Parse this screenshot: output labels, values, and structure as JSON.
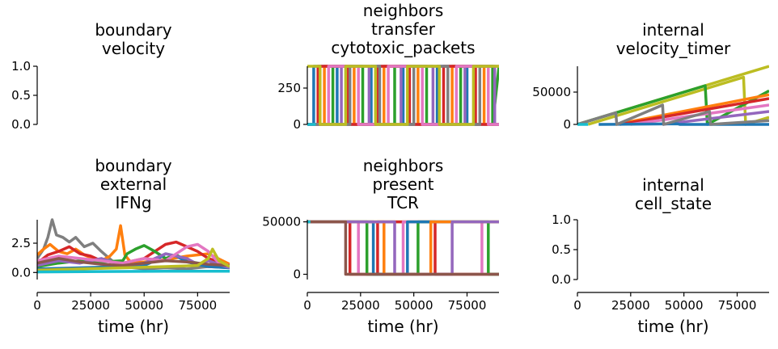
{
  "chart_data": [
    {
      "type": "line",
      "title_lines": [
        "boundary",
        "velocity"
      ],
      "xlabel": "",
      "ylabel": "",
      "xlim": [
        0,
        90000
      ],
      "ylim": [
        0,
        1.0
      ],
      "yticks": [
        0.0,
        0.5,
        1.0
      ],
      "ytick_labels": [
        "0.0",
        "0.5",
        "1.0"
      ],
      "xticks": [],
      "xtick_labels": [],
      "series": []
    },
    {
      "type": "line",
      "title_lines": [
        "neighbors",
        "transfer",
        "cytotoxic_packets"
      ],
      "xlabel": "",
      "ylabel": "",
      "xlim": [
        0,
        90000
      ],
      "ylim": [
        0,
        400
      ],
      "yticks": [
        0,
        250
      ],
      "ytick_labels": [
        "0",
        "250"
      ],
      "xticks": [],
      "xtick_labels": [],
      "series": [
        {
          "color": "#1f77b4",
          "x": [
            0,
            3000,
            3001,
            14000,
            14001,
            30000,
            30001,
            45000,
            45001,
            61000,
            61001,
            75000,
            75001,
            90000
          ],
          "y": [
            0,
            0,
            400,
            400,
            0,
            0,
            400,
            400,
            0,
            0,
            400,
            400,
            0,
            0
          ]
        },
        {
          "color": "#ff7f0e",
          "x": [
            0,
            8000,
            8001,
            22000,
            22001,
            36000,
            36001,
            52000,
            52001,
            68000,
            68001,
            83000,
            83001,
            90000
          ],
          "y": [
            0,
            0,
            400,
            400,
            0,
            0,
            400,
            400,
            0,
            0,
            400,
            400,
            0,
            0
          ]
        },
        {
          "color": "#2ca02c",
          "x": [
            0,
            12000,
            12001,
            26000,
            26001,
            41000,
            41001,
            56000,
            56001,
            72000,
            72001,
            87000,
            87001,
            90000
          ],
          "y": [
            0,
            0,
            400,
            400,
            0,
            0,
            400,
            400,
            0,
            0,
            400,
            400,
            0,
            400
          ]
        },
        {
          "color": "#d62728",
          "x": [
            0,
            5000,
            5001,
            19000,
            19001,
            33000,
            33001,
            48000,
            48001,
            64000,
            64001,
            79000,
            79001,
            90000
          ],
          "y": [
            0,
            0,
            400,
            400,
            0,
            0,
            400,
            400,
            0,
            0,
            400,
            400,
            0,
            0
          ]
        },
        {
          "color": "#9467bd",
          "x": [
            0,
            16000,
            16001,
            29000,
            29001,
            44000,
            44001,
            59000,
            59001,
            74000,
            74001,
            88000,
            88001,
            90000
          ],
          "y": [
            0,
            0,
            400,
            400,
            0,
            0,
            400,
            400,
            0,
            0,
            400,
            400,
            0,
            0
          ]
        },
        {
          "color": "#e377c2",
          "x": [
            0,
            10000,
            10001,
            24000,
            24001,
            38000,
            38001,
            54000,
            54001,
            70000,
            70001,
            85000,
            85001,
            90000
          ],
          "y": [
            0,
            0,
            400,
            400,
            0,
            0,
            400,
            400,
            0,
            0,
            400,
            400,
            0,
            0
          ]
        },
        {
          "color": "#7f7f7f",
          "x": [
            0,
            20000,
            20001,
            34000,
            34001,
            50000,
            50001,
            66000,
            66001,
            81000,
            81001,
            90000
          ],
          "y": [
            0,
            0,
            400,
            400,
            0,
            0,
            400,
            400,
            0,
            0,
            400,
            400
          ]
        },
        {
          "color": "#bcbd22",
          "x": [
            0,
            6000,
            6001,
            18000,
            18001,
            32000,
            32001,
            47000,
            47001,
            62000,
            62001,
            78000,
            78001,
            90000
          ],
          "y": [
            400,
            400,
            0,
            0,
            400,
            400,
            0,
            0,
            400,
            400,
            0,
            0,
            400,
            400
          ]
        },
        {
          "color": "#17becf",
          "x": [
            0,
            4000
          ],
          "y": [
            0,
            0
          ]
        }
      ]
    },
    {
      "type": "line",
      "title_lines": [
        "internal",
        "velocity_timer"
      ],
      "xlabel": "",
      "ylabel": "",
      "xlim": [
        0,
        90000
      ],
      "ylim": [
        0,
        90000
      ],
      "yticks": [
        0,
        50000
      ],
      "ytick_labels": [
        "0",
        "50000"
      ],
      "xticks": [],
      "xtick_labels": [],
      "series": [
        {
          "color": "#bcbd22",
          "x": [
            0,
            90000
          ],
          "y": [
            0,
            90000
          ]
        },
        {
          "color": "#bcbd22",
          "x": [
            5000,
            78000,
            79000,
            90000
          ],
          "y": [
            0,
            73000,
            0,
            11000
          ]
        },
        {
          "color": "#2ca02c",
          "x": [
            0,
            60000,
            61000,
            90000
          ],
          "y": [
            0,
            60000,
            0,
            52000
          ]
        },
        {
          "color": "#ff7f0e",
          "x": [
            18000,
            90000
          ],
          "y": [
            0,
            46000
          ]
        },
        {
          "color": "#d62728",
          "x": [
            20000,
            90000
          ],
          "y": [
            0,
            40000
          ]
        },
        {
          "color": "#e377c2",
          "x": [
            25000,
            90000
          ],
          "y": [
            0,
            30000
          ]
        },
        {
          "color": "#9467bd",
          "x": [
            40000,
            90000
          ],
          "y": [
            0,
            20000
          ]
        },
        {
          "color": "#1f77b4",
          "x": [
            10000,
            47000,
            48000,
            90000
          ],
          "y": [
            0,
            1000,
            0,
            0
          ]
        },
        {
          "color": "#7f7f7f",
          "x": [
            0,
            18000,
            18500,
            40000,
            40500,
            62000,
            62500,
            90000
          ],
          "y": [
            0,
            18000,
            0,
            30000,
            0,
            20000,
            0,
            6000
          ]
        },
        {
          "color": "#17becf",
          "x": [
            0,
            5000
          ],
          "y": [
            0,
            0
          ]
        }
      ]
    },
    {
      "type": "line",
      "title_lines": [
        "boundary",
        "external",
        "IFNg"
      ],
      "xlabel": "time (hr)",
      "ylabel": "",
      "xlim": [
        0,
        90000
      ],
      "ylim": [
        -0.6,
        4.5
      ],
      "yticks": [
        0.0,
        2.5
      ],
      "ytick_labels": [
        "0.0",
        "2.5"
      ],
      "xticks": [
        0,
        25000,
        50000,
        75000
      ],
      "xtick_labels": [
        "0",
        "25000",
        "50000",
        "75000"
      ],
      "series": [
        {
          "color": "#7f7f7f",
          "x": [
            0,
            3000,
            5000,
            7000,
            9000,
            12000,
            15000,
            18000,
            22000,
            26000,
            30000,
            35000,
            40000,
            50000,
            60000,
            70000,
            80000,
            90000
          ],
          "y": [
            1.2,
            2.0,
            3.0,
            4.5,
            3.2,
            3.0,
            2.6,
            3.0,
            2.2,
            2.5,
            1.8,
            1.0,
            0.5,
            0.3,
            0.4,
            0.3,
            0.5,
            0.4
          ]
        },
        {
          "color": "#ff7f0e",
          "x": [
            0,
            3000,
            6000,
            10000,
            14000,
            18000,
            22000,
            26000,
            30000,
            34000,
            37000,
            39000,
            41000,
            44000,
            50000,
            60000,
            70000,
            80000,
            90000
          ],
          "y": [
            1.5,
            2.0,
            2.4,
            1.8,
            1.6,
            2.0,
            1.5,
            1.2,
            1.0,
            1.4,
            2.0,
            4.0,
            1.5,
            0.8,
            0.9,
            1.1,
            1.4,
            1.6,
            0.7
          ]
        },
        {
          "color": "#d62728",
          "x": [
            0,
            5000,
            10000,
            15000,
            20000,
            25000,
            30000,
            40000,
            50000,
            55000,
            60000,
            65000,
            70000,
            75000,
            80000,
            85000,
            90000
          ],
          "y": [
            0.8,
            1.5,
            1.8,
            2.2,
            1.6,
            1.4,
            1.0,
            0.8,
            1.2,
            1.8,
            2.4,
            2.6,
            2.2,
            1.8,
            1.2,
            0.9,
            0.5
          ]
        },
        {
          "color": "#2ca02c",
          "x": [
            0,
            10000,
            20000,
            30000,
            40000,
            42000,
            46000,
            50000,
            55000,
            60000,
            65000,
            70000,
            80000,
            90000
          ],
          "y": [
            0.5,
            0.8,
            1.0,
            0.9,
            1.0,
            1.6,
            2.0,
            2.3,
            1.8,
            1.2,
            1.5,
            1.0,
            0.6,
            0.5
          ]
        },
        {
          "color": "#1f77b4",
          "x": [
            0,
            20000,
            40000,
            50000,
            55000,
            60000,
            65000,
            70000,
            80000,
            90000
          ],
          "y": [
            0.3,
            0.4,
            0.5,
            0.6,
            1.0,
            1.6,
            1.4,
            0.9,
            0.5,
            0.4
          ]
        },
        {
          "color": "#9467bd",
          "x": [
            0,
            10000,
            20000,
            30000,
            40000,
            50000,
            60000,
            70000,
            75000,
            80000,
            90000
          ],
          "y": [
            0.6,
            1.0,
            0.8,
            1.2,
            0.6,
            0.8,
            1.6,
            1.2,
            0.7,
            1.0,
            0.4
          ]
        },
        {
          "color": "#e377c2",
          "x": [
            0,
            10000,
            20000,
            30000,
            40000,
            50000,
            60000,
            70000,
            75000,
            80000,
            85000,
            90000
          ],
          "y": [
            1.0,
            1.4,
            1.2,
            1.0,
            0.8,
            1.2,
            1.0,
            2.2,
            2.4,
            1.8,
            0.8,
            0.6
          ]
        },
        {
          "color": "#8c564b",
          "x": [
            0,
            10000,
            20000,
            30000,
            40000,
            50000,
            60000,
            70000,
            80000,
            90000
          ],
          "y": [
            0.8,
            1.2,
            0.9,
            0.7,
            0.6,
            0.8,
            1.0,
            0.9,
            0.7,
            0.6
          ]
        },
        {
          "color": "#bcbd22",
          "x": [
            0,
            20000,
            40000,
            60000,
            75000,
            80000,
            82000,
            85000,
            90000
          ],
          "y": [
            0.2,
            0.3,
            0.4,
            0.5,
            0.6,
            1.2,
            2.0,
            1.0,
            0.5
          ]
        },
        {
          "color": "#17becf",
          "x": [
            0,
            30000,
            60000,
            90000
          ],
          "y": [
            0.05,
            0.08,
            0.1,
            0.1
          ]
        }
      ]
    },
    {
      "type": "line",
      "title_lines": [
        "neighbors",
        "present",
        "TCR"
      ],
      "xlabel": "time (hr)",
      "ylabel": "",
      "xlim": [
        0,
        90000
      ],
      "ylim": [
        -5000,
        52000
      ],
      "yticks": [
        0,
        50000
      ],
      "ytick_labels": [
        "0",
        "50000"
      ],
      "xticks": [
        0,
        25000,
        50000,
        75000
      ],
      "xtick_labels": [
        "0",
        "25000",
        "50000",
        "75000"
      ],
      "series": [
        {
          "color": "#bcbd22",
          "x": [
            0,
            90000
          ],
          "y": [
            50000,
            50000
          ]
        },
        {
          "color": "#d62728",
          "x": [
            0,
            20000,
            20001,
            33000,
            33001,
            60000,
            60001,
            90000
          ],
          "y": [
            50000,
            50000,
            0,
            0,
            50000,
            50000,
            0,
            0
          ]
        },
        {
          "color": "#e377c2",
          "x": [
            0,
            24000,
            24001,
            45000,
            45001,
            82000,
            82001,
            90000
          ],
          "y": [
            50000,
            50000,
            0,
            0,
            50000,
            50000,
            0,
            0
          ]
        },
        {
          "color": "#2ca02c",
          "x": [
            0,
            28000,
            28001,
            52000,
            52001,
            85000,
            85001,
            90000
          ],
          "y": [
            50000,
            50000,
            0,
            0,
            50000,
            50000,
            0,
            0
          ]
        },
        {
          "color": "#1f77b4",
          "x": [
            0,
            31000,
            31001,
            47000,
            47001,
            90000
          ],
          "y": [
            50000,
            50000,
            0,
            0,
            50000,
            50000
          ]
        },
        {
          "color": "#ff7f0e",
          "x": [
            0,
            36000,
            36001,
            58000,
            58001,
            90000
          ],
          "y": [
            50000,
            50000,
            0,
            0,
            50000,
            50000
          ]
        },
        {
          "color": "#9467bd",
          "x": [
            0,
            41000,
            41001,
            68000,
            68001,
            90000
          ],
          "y": [
            50000,
            50000,
            0,
            0,
            50000,
            50000
          ]
        },
        {
          "color": "#8c564b",
          "x": [
            0,
            18000,
            18001,
            90000
          ],
          "y": [
            50000,
            50000,
            0,
            0
          ]
        },
        {
          "color": "#17becf",
          "x": [
            0,
            1500
          ],
          "y": [
            50000,
            50000
          ]
        }
      ]
    },
    {
      "type": "line",
      "title_lines": [
        "internal",
        "cell_state"
      ],
      "xlabel": "time (hr)",
      "ylabel": "",
      "xlim": [
        0,
        90000
      ],
      "ylim": [
        0,
        1.0
      ],
      "yticks": [
        0.0,
        0.5,
        1.0
      ],
      "ytick_labels": [
        "0.0",
        "0.5",
        "1.0"
      ],
      "xticks": [
        0,
        25000,
        50000,
        75000
      ],
      "xtick_labels": [
        "0",
        "25000",
        "50000",
        "75000"
      ],
      "series": []
    }
  ]
}
